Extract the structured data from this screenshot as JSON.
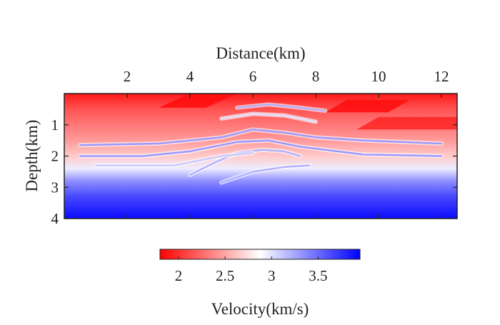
{
  "chart_data": {
    "type": "heatmap",
    "title": "",
    "xlabel": "Distance(km)",
    "ylabel": "Depth(km)",
    "x_axis_position": "top",
    "xlim": [
      0,
      12.5
    ],
    "ylim": [
      0,
      4
    ],
    "xticks": [
      2,
      4,
      6,
      8,
      10,
      12
    ],
    "yticks": [
      1,
      2,
      3,
      4
    ],
    "colorbar": {
      "label": "Velocity(km/s)",
      "placement": "bottom",
      "colormap": "bwr-reversed",
      "low_color": "#ff0000",
      "mid_color": "#ffffff",
      "high_color": "#0000ff",
      "range": [
        1.8,
        3.95
      ],
      "ticks": [
        2,
        2.5,
        3,
        3.5
      ]
    },
    "velocity_profile": [
      {
        "depth": 0.0,
        "velocity": 1.9
      },
      {
        "depth": 0.5,
        "velocity": 2.15
      },
      {
        "depth": 1.0,
        "velocity": 2.3
      },
      {
        "depth": 1.5,
        "velocity": 2.45
      },
      {
        "depth": 2.0,
        "velocity": 2.65
      },
      {
        "depth": 2.4,
        "velocity": 2.95
      },
      {
        "depth": 2.8,
        "velocity": 3.35
      },
      {
        "depth": 3.3,
        "velocity": 3.65
      },
      {
        "depth": 4.0,
        "velocity": 3.9
      }
    ],
    "thin_layers": [
      {
        "velocity": 3.3,
        "points": [
          [
            0.5,
            1.65
          ],
          [
            3,
            1.6
          ],
          [
            5,
            1.4
          ],
          [
            6,
            1.15
          ],
          [
            7,
            1.25
          ],
          [
            8,
            1.4
          ],
          [
            9.5,
            1.5
          ],
          [
            12,
            1.6
          ]
        ]
      },
      {
        "velocity": 3.3,
        "points": [
          [
            0.5,
            2.0
          ],
          [
            2.5,
            2.0
          ],
          [
            4,
            1.85
          ],
          [
            5.5,
            1.55
          ],
          [
            6.5,
            1.5
          ],
          [
            7.5,
            1.7
          ],
          [
            9.5,
            1.95
          ],
          [
            12,
            2.0
          ]
        ]
      },
      {
        "velocity": 3.2,
        "points": [
          [
            4.0,
            2.6
          ],
          [
            4.8,
            2.2
          ],
          [
            5.5,
            1.9
          ],
          [
            6.3,
            1.8
          ],
          [
            7.0,
            1.85
          ],
          [
            7.5,
            2.0
          ]
        ]
      },
      {
        "velocity": 3.1,
        "points": [
          [
            1.0,
            2.3
          ],
          [
            3.5,
            2.3
          ],
          [
            5.0,
            2.0
          ],
          [
            6.0,
            1.9
          ]
        ]
      },
      {
        "velocity": 3.2,
        "points": [
          [
            5.0,
            2.85
          ],
          [
            6.0,
            2.5
          ],
          [
            7.0,
            2.35
          ],
          [
            7.8,
            2.3
          ]
        ]
      },
      {
        "velocity": 3.2,
        "points": [
          [
            5.5,
            0.45
          ],
          [
            6.5,
            0.35
          ],
          [
            7.5,
            0.45
          ],
          [
            8.3,
            0.55
          ]
        ]
      },
      {
        "velocity": 3.0,
        "points": [
          [
            5.0,
            0.8
          ],
          [
            6.0,
            0.65
          ],
          [
            7.0,
            0.7
          ],
          [
            8.0,
            0.9
          ]
        ]
      }
    ],
    "fault_blocks": [
      {
        "velocity": 1.85,
        "points": [
          [
            8.3,
            0.6
          ],
          [
            9.0,
            0.2
          ],
          [
            11.0,
            0.2
          ],
          [
            10.3,
            0.6
          ]
        ]
      },
      {
        "velocity": 1.95,
        "points": [
          [
            9.3,
            1.15
          ],
          [
            10.0,
            0.75
          ],
          [
            12.5,
            0.75
          ],
          [
            12.5,
            1.15
          ]
        ]
      },
      {
        "velocity": 1.85,
        "points": [
          [
            3.0,
            0.45
          ],
          [
            4.0,
            0.0
          ],
          [
            5.5,
            0.0
          ],
          [
            4.5,
            0.45
          ]
        ]
      }
    ]
  }
}
